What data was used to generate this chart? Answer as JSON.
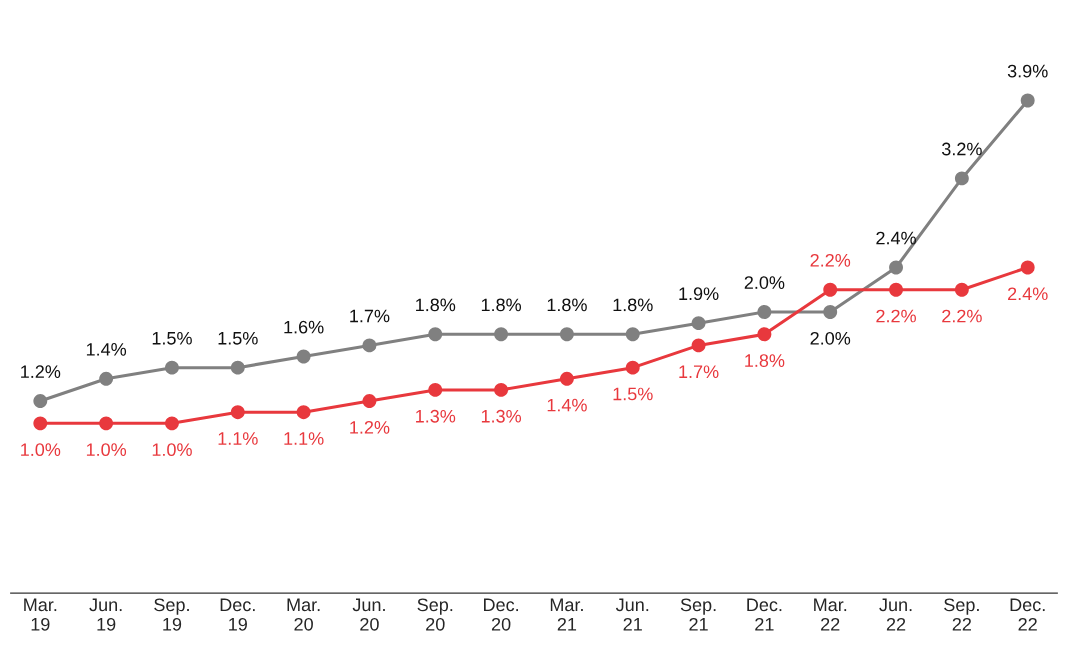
{
  "chart_data": {
    "type": "line",
    "categories": [
      "Mar.\n19",
      "Jun.\n19",
      "Sep.\n19",
      "Dec.\n19",
      "Mar.\n20",
      "Jun.\n20",
      "Sep.\n20",
      "Dec.\n20",
      "Mar.\n21",
      "Jun.\n21",
      "Sep.\n21",
      "Dec.\n21",
      "Mar.\n22",
      "Jun.\n22",
      "Sep.\n22",
      "Dec.\n22"
    ],
    "series": [
      {
        "color": "#808080",
        "values": [
          1.2,
          1.4,
          1.5,
          1.5,
          1.6,
          1.7,
          1.8,
          1.8,
          1.8,
          1.8,
          1.9,
          2.0,
          2.0,
          2.4,
          3.2,
          3.9
        ],
        "value_labels": [
          "1.2%",
          "1.4%",
          "1.5%",
          "1.5%",
          "1.6%",
          "1.7%",
          "1.8%",
          "1.8%",
          "1.8%",
          "1.8%",
          "1.9%",
          "2.0%",
          "2.0%",
          "2.4%",
          "3.2%",
          "3.9%"
        ]
      },
      {
        "color": "#e8383d",
        "values": [
          1.0,
          1.0,
          1.0,
          1.1,
          1.1,
          1.2,
          1.3,
          1.3,
          1.4,
          1.5,
          1.7,
          1.8,
          2.2,
          2.2,
          2.2,
          2.4
        ],
        "value_labels": [
          "1.0%",
          "1.0%",
          "1.0%",
          "1.1%",
          "1.1%",
          "1.2%",
          "1.3%",
          "1.3%",
          "1.4%",
          "1.5%",
          "1.7%",
          "1.8%",
          "2.2%",
          "2.2%",
          "2.2%",
          "2.4%"
        ]
      }
    ],
    "marker": "circle",
    "line_style": "solid",
    "grid": false,
    "legend": false,
    "tick_labels": "x"
  }
}
